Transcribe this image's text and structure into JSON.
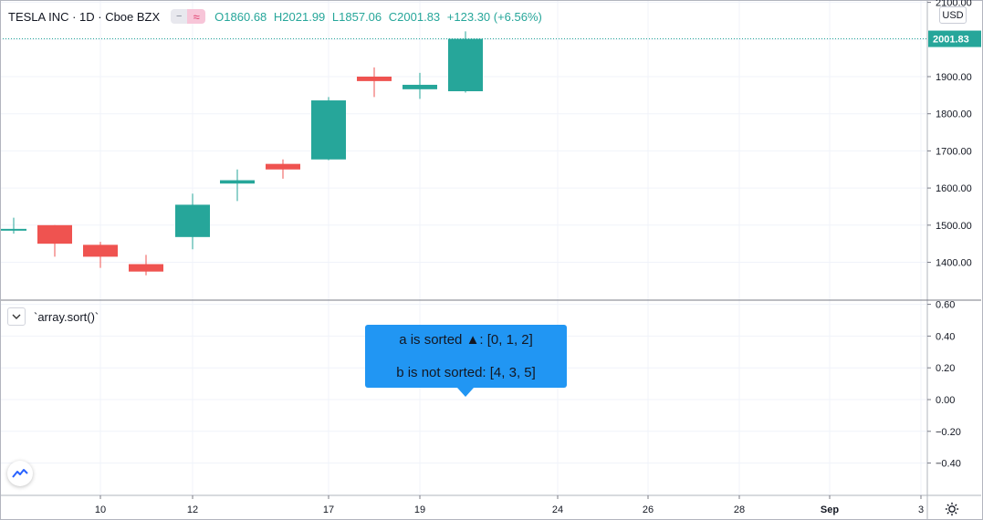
{
  "header": {
    "symbol_line": "TESLA INC · 1D · Cboe BZX",
    "pill_left": "−",
    "pill_right": "≈",
    "open": "O1860.68",
    "high": "H2021.99",
    "low": "L1857.06",
    "close": "C2001.83",
    "change": "+123.30 (+6.56%)"
  },
  "currency": "USD",
  "last_price_label": "2001.83",
  "indicator": {
    "name": "`array.sort()`",
    "toggle_icon": "chevron-down-icon",
    "tooltip_line1": "a is sorted ▲: [0, 1, 2]",
    "tooltip_line2": "b is not sorted: [4, 3, 5]",
    "tooltip_color": "#2196f3"
  },
  "colors": {
    "up": "#26a69a",
    "down": "#ef5350",
    "grid": "#f0f3fa",
    "axis_text": "#131722"
  },
  "chart_data": [
    {
      "type": "candlestick",
      "title": "TESLA INC · 1D · Cboe BZX",
      "x_ticks": [
        "10",
        "12",
        "17",
        "19",
        "24",
        "26",
        "28",
        "Sep",
        "3"
      ],
      "y_ticks": [
        "1400.00",
        "1500.00",
        "1600.00",
        "1700.00",
        "1800.00",
        "1900.00",
        "2100.00"
      ],
      "ylim": [
        1300,
        2130
      ],
      "candles": [
        {
          "date": "Aug 6",
          "open": 1490,
          "high": 1520,
          "low": 1477,
          "close": 1490
        },
        {
          "date": "Aug 7",
          "open": 1500,
          "high": 1500,
          "low": 1415,
          "close": 1450
        },
        {
          "date": "Aug 10",
          "open": 1447,
          "high": 1455,
          "low": 1385,
          "close": 1415
        },
        {
          "date": "Aug 11",
          "open": 1395,
          "high": 1420,
          "low": 1365,
          "close": 1375
        },
        {
          "date": "Aug 12",
          "open": 1468,
          "high": 1585,
          "low": 1435,
          "close": 1555
        },
        {
          "date": "Aug 13",
          "open": 1612,
          "high": 1650,
          "low": 1565,
          "close": 1621
        },
        {
          "date": "Aug 14",
          "open": 1665,
          "high": 1677,
          "low": 1625,
          "close": 1650
        },
        {
          "date": "Aug 17",
          "open": 1677,
          "high": 1845,
          "low": 1675,
          "close": 1836
        },
        {
          "date": "Aug 18",
          "open": 1900,
          "high": 1925,
          "low": 1845,
          "close": 1888
        },
        {
          "date": "Aug 19",
          "open": 1866,
          "high": 1910,
          "low": 1840,
          "close": 1878
        },
        {
          "date": "Aug 20",
          "open": 1860.68,
          "high": 2021.99,
          "low": 1857.06,
          "close": 2001.83
        }
      ],
      "last_price": 2001.83
    },
    {
      "type": "indicator-pane",
      "title": "`array.sort()`",
      "y_ticks": [
        "0.60",
        "0.40",
        "0.20",
        "0.00",
        "−0.20",
        "−0.40"
      ],
      "ylim": [
        -0.62,
        0.62
      ]
    }
  ]
}
